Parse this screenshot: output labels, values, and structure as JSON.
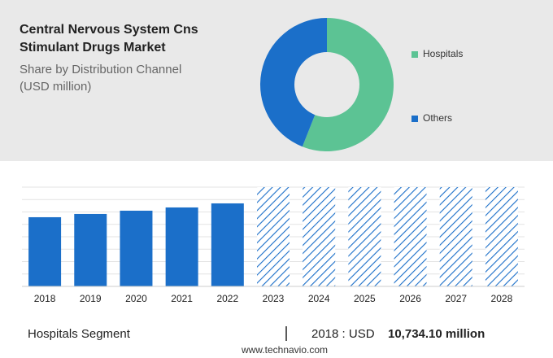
{
  "title": [
    "Central Nervous System Cns",
    "Stimulant Drugs Market"
  ],
  "subtitle": [
    "Share by Distribution Channel",
    "(USD million)"
  ],
  "chart_data": [
    {
      "type": "pie",
      "donut": true,
      "categories": [
        "Hospitals",
        "Others"
      ],
      "values": [
        56,
        44
      ],
      "colors": [
        "#5cc394",
        "#1b6fc9"
      ]
    },
    {
      "type": "bar",
      "categories": [
        "2018",
        "2019",
        "2020",
        "2021",
        "2022",
        "2023",
        "2024",
        "2025",
        "2026",
        "2027",
        "2028"
      ],
      "values": [
        10734.1,
        11240,
        11745,
        12250,
        12880,
        null,
        null,
        null,
        null,
        null,
        null
      ],
      "color": "#1b6fc9",
      "ylim": [
        0,
        15400
      ],
      "grid": true
    }
  ],
  "footer": {
    "segment": "Hospitals Segment",
    "year": "2018 : USD",
    "value": "10,734.10 million",
    "source": "www.technavio.com"
  }
}
